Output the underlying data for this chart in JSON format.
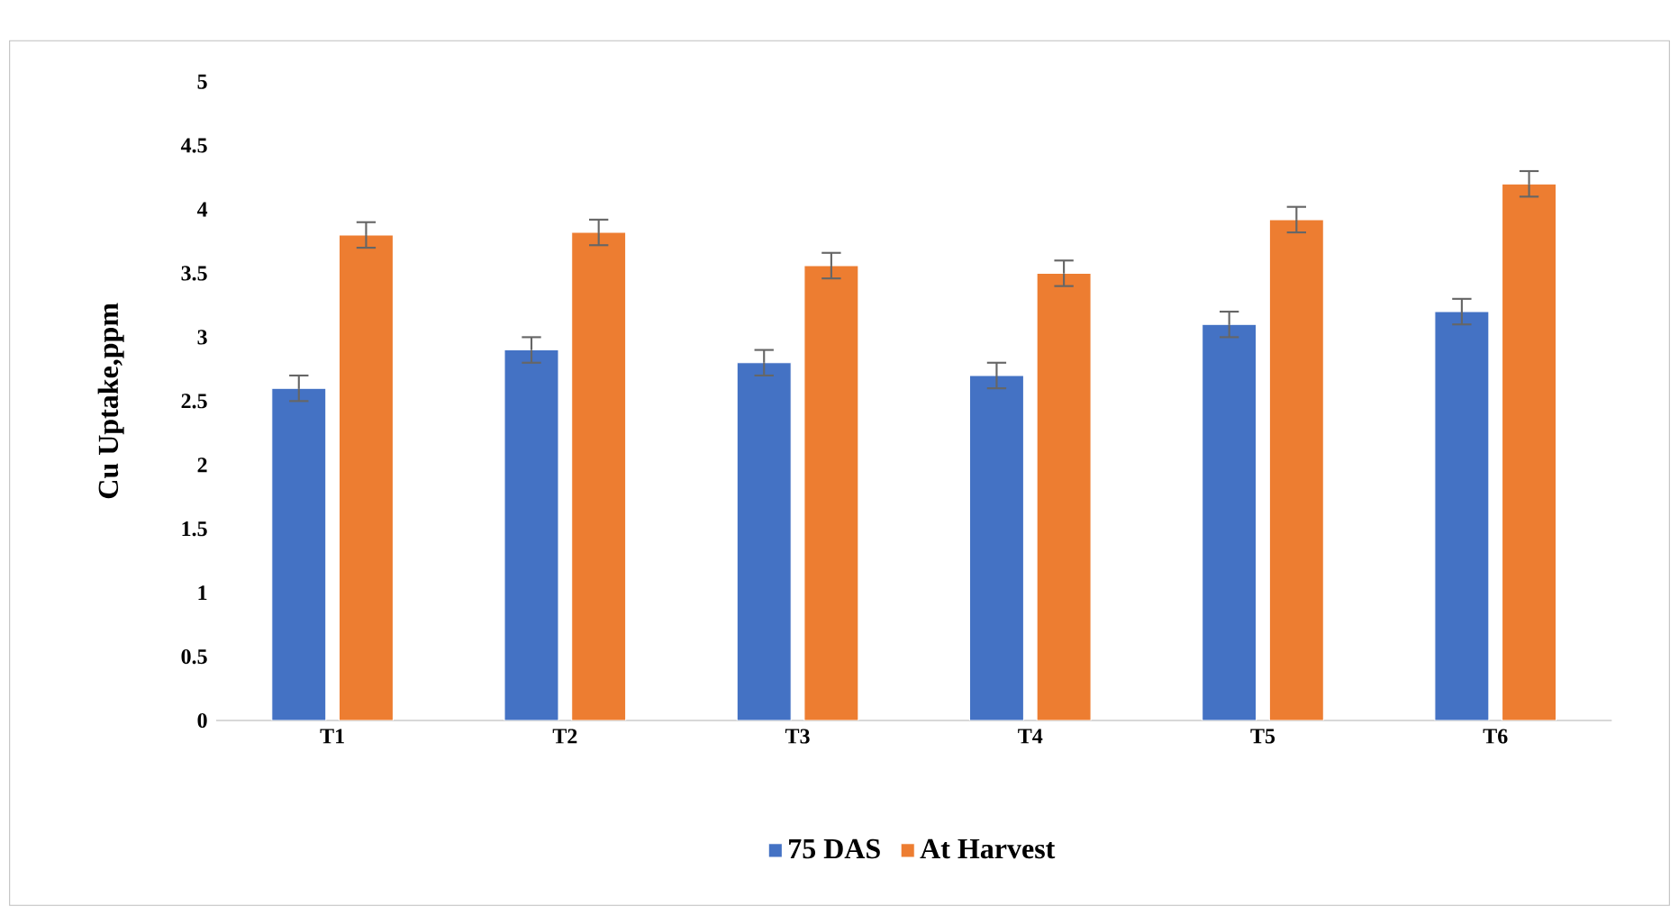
{
  "chart_data": {
    "type": "bar",
    "ylabel": "Cu Uptake,ppm",
    "categories": [
      "T1",
      "T2",
      "T3",
      "T4",
      "T5",
      "T6"
    ],
    "series": [
      {
        "name": "75 DAS",
        "color": "#4472c4",
        "values": [
          2.6,
          2.9,
          2.8,
          2.7,
          3.1,
          3.2
        ],
        "errors": [
          0.1,
          0.1,
          0.1,
          0.1,
          0.1,
          0.1
        ]
      },
      {
        "name": "At Harvest",
        "color": "#ed7d31",
        "values": [
          3.8,
          3.82,
          3.56,
          3.5,
          3.92,
          4.2
        ],
        "errors": [
          0.1,
          0.1,
          0.1,
          0.1,
          0.1,
          0.1
        ]
      }
    ],
    "ylim": [
      0,
      5
    ],
    "yticks": [
      0,
      0.5,
      1,
      1.5,
      2,
      2.5,
      3,
      3.5,
      4,
      4.5,
      5
    ],
    "legend": "bottom"
  }
}
